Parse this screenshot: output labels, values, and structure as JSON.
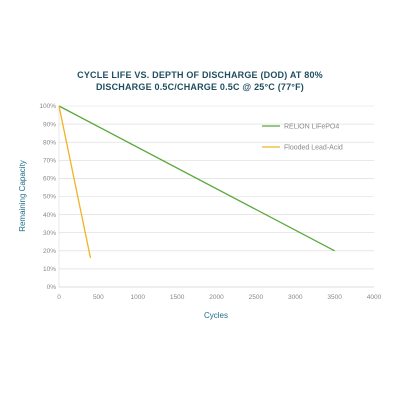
{
  "chart_data": {
    "type": "line",
    "title": "CYCLE LIFE VS. DEPTH OF DISCHARGE (DOD) AT 80%",
    "subtitle": "DISCHARGE 0.5C/CHARGE 0.5C @ 25°C (77°F)",
    "xlabel": "Cycles",
    "ylabel": "Remaining Capacity",
    "xlim": [
      0,
      4000
    ],
    "ylim": [
      0,
      100
    ],
    "xticks": [
      0,
      500,
      1000,
      1500,
      2000,
      2500,
      3000,
      3500,
      4000
    ],
    "yticks": [
      0,
      10,
      20,
      30,
      40,
      50,
      60,
      70,
      80,
      90,
      100
    ],
    "ytick_labels": [
      "0%",
      "10%",
      "20%",
      "30%",
      "40%",
      "50%",
      "60%",
      "70%",
      "80%",
      "90%",
      "100%"
    ],
    "grid": "horizontal",
    "legend_position": "right",
    "series": [
      {
        "name": "RELiON LiFePO4",
        "color": "#5aa83c",
        "x": [
          0,
          3500
        ],
        "y": [
          100,
          20
        ]
      },
      {
        "name": "Flooded Lead-Acid",
        "color": "#f0b323",
        "x": [
          0,
          400
        ],
        "y": [
          100,
          16
        ]
      }
    ]
  }
}
